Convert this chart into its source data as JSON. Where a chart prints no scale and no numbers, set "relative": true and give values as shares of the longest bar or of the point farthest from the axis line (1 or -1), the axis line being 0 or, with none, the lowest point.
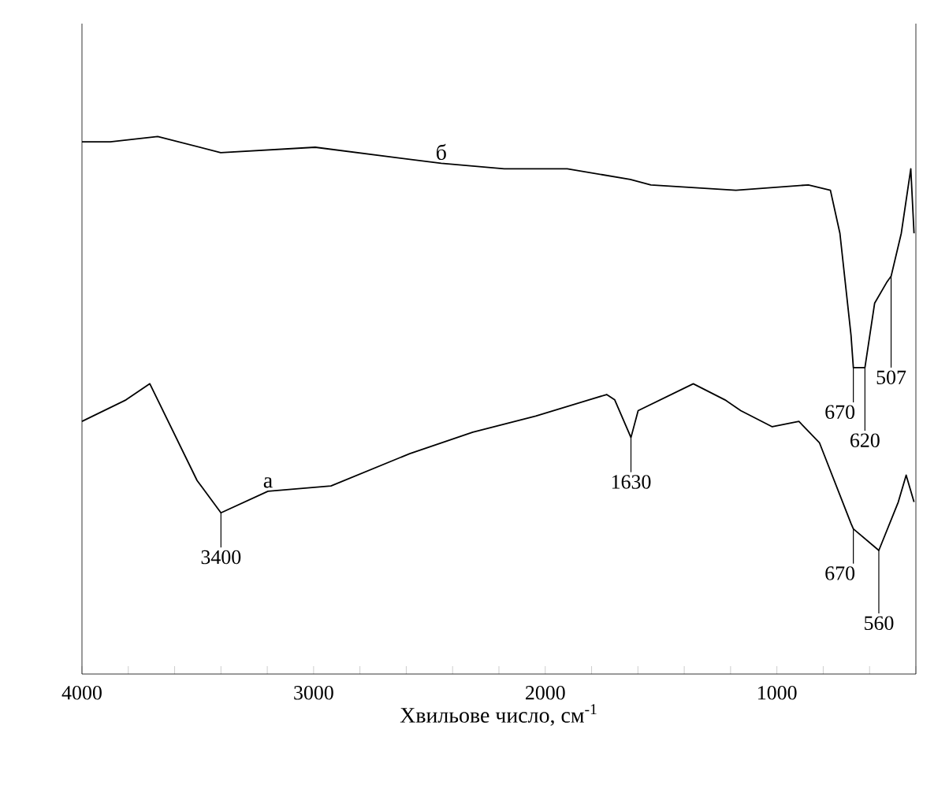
{
  "chart_data": {
    "type": "line",
    "relative": true,
    "xlabel": "Хвильове число, см$^{-1}$",
    "xlim": [
      4000,
      400
    ],
    "xticks": [
      4000,
      {
        "value": 3800,
        "label": null
      },
      {
        "value": 3600,
        "label": null
      },
      {
        "value": 3400,
        "label": null
      },
      {
        "value": 3200,
        "label": null
      },
      3000,
      {
        "value": 2800,
        "label": null
      },
      {
        "value": 2600,
        "label": null
      },
      {
        "value": 2400,
        "label": null
      },
      {
        "value": 2200,
        "label": null
      },
      2000,
      {
        "value": 1800,
        "label": null
      },
      {
        "value": 1600,
        "label": null
      },
      {
        "value": 1400,
        "label": null
      },
      {
        "value": 1200,
        "label": null
      },
      1000,
      {
        "value": 800,
        "label": null
      },
      {
        "value": 600,
        "label": null
      },
      {
        "value": 400,
        "label": null
      }
    ],
    "marker": "none",
    "line_style": "solid",
    "legend": false,
    "grid": false,
    "series": [
      {
        "name": "б",
        "color": "#000000",
        "x": [
          4000,
          3878,
          3673,
          3401,
          2993,
          2449,
          2177,
          1905,
          1633,
          1544,
          1177,
          864,
          769,
          728,
          680,
          670,
          620,
          578,
          524,
          507,
          463,
          422,
          408
        ],
        "values": [
          0.99,
          0.99,
          1.0,
          0.97,
          0.98,
          0.95,
          0.94,
          0.94,
          0.92,
          0.91,
          0.9,
          0.91,
          0.9,
          0.82,
          0.63,
          0.57,
          0.57,
          0.69,
          0.73,
          0.74,
          0.82,
          0.94,
          0.82
        ]
      },
      {
        "name": "а",
        "color": "#000000",
        "x": [
          4000,
          3810,
          3707,
          3605,
          3503,
          3400,
          3197,
          2925,
          2585,
          2313,
          2041,
          1735,
          1700,
          1630,
          1599,
          1361,
          1224,
          1156,
          1020,
          905,
          816,
          680,
          670,
          560,
          476,
          442,
          408
        ],
        "values": [
          0.47,
          0.51,
          0.54,
          0.45,
          0.36,
          0.3,
          0.34,
          0.35,
          0.41,
          0.45,
          0.48,
          0.52,
          0.51,
          0.44,
          0.49,
          0.54,
          0.51,
          0.49,
          0.46,
          0.47,
          0.43,
          0.28,
          0.27,
          0.23,
          0.32,
          0.37,
          0.32
        ]
      }
    ],
    "annotations": [
      {
        "text": "670",
        "x": 670,
        "y": 0.57
      },
      {
        "text": "620",
        "x": 620,
        "y": 0.57
      },
      {
        "text": "507",
        "x": 507,
        "y": 0.74
      },
      {
        "text": "3400",
        "x": 3400,
        "y": 0.3
      },
      {
        "text": "1630",
        "x": 1630,
        "y": 0.44
      },
      {
        "text": "670",
        "x": 670,
        "y": 0.27
      },
      {
        "text": "560",
        "x": 560,
        "y": 0.23
      }
    ]
  }
}
